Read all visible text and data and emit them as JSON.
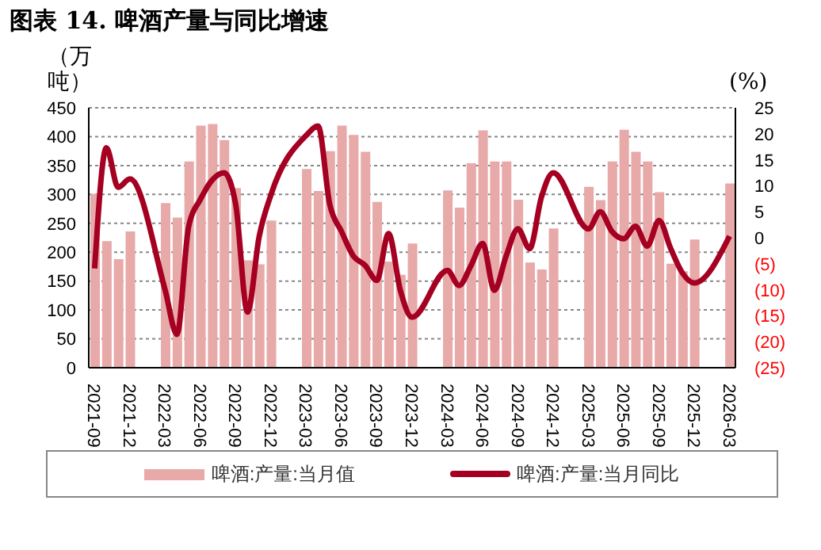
{
  "chart_data": {
    "type": "bar",
    "title": "图表 14. 啤酒产量与同比增速",
    "ylabel": "（万吨）",
    "y2label": "(%)",
    "categories": [
      "2021-09",
      null,
      null,
      "2021-12",
      null,
      null,
      "2022-03",
      null,
      null,
      "2022-06",
      null,
      null,
      "2022-09",
      null,
      null,
      "2022-12",
      null,
      null,
      "2023-03",
      null,
      null,
      "2023-06",
      null,
      null,
      "2023-09",
      null,
      null,
      "2023-12",
      null,
      null,
      "2024-03",
      null,
      null,
      "2024-06",
      null,
      null,
      "2024-09",
      null,
      null,
      "2024-12",
      null,
      null,
      "2025-03",
      null,
      null,
      "2025-06",
      null,
      null,
      "2025-09",
      null,
      null,
      "2025-12",
      null,
      null,
      "2026-03"
    ],
    "series": [
      {
        "name": "啤酒:产量:当月值",
        "axis": "y",
        "color": "#e8a9a9",
        "values": [
          301,
          219,
          188,
          236,
          null,
          null,
          285,
          260,
          357,
          419,
          422,
          394,
          311,
          186,
          179,
          255,
          null,
          null,
          344,
          306,
          375,
          419,
          403,
          374,
          287,
          184,
          161,
          215,
          null,
          null,
          307,
          277,
          354,
          411,
          357,
          357,
          291,
          182,
          170,
          241,
          null,
          null,
          313,
          290,
          357,
          412,
          374,
          357,
          304,
          180,
          167,
          222,
          null,
          null,
          319
        ]
      },
      {
        "name": "啤酒:产量:当月同比",
        "type": "line",
        "axis": "y2",
        "color": "#a50021",
        "values": [
          -5.9,
          17.3,
          9.7,
          11.3,
          null,
          null,
          -10.1,
          -18.6,
          2.2,
          7.4,
          11.1,
          12.5,
          6.4,
          -14.3,
          0.3,
          8.3,
          null,
          null,
          19.7,
          21.5,
          6.4,
          1.2,
          -3.5,
          -5.3,
          -8.2,
          0.8,
          -10.1,
          -15.3,
          null,
          null,
          -6.3,
          -9.2,
          -5.4,
          -1.1,
          -10.1,
          -3.5,
          1.7,
          -2.1,
          7.8,
          12.5,
          null,
          null,
          1.7,
          5.0,
          1.2,
          -0.2,
          2.2,
          -1.6,
          3.3,
          -2.1,
          -6.8,
          -8.7,
          null,
          null,
          0.3
        ]
      }
    ],
    "ylim": [
      0,
      450
    ],
    "yticks": [
      0,
      50,
      100,
      150,
      200,
      250,
      300,
      350,
      400,
      450
    ],
    "y2lim": [
      -25,
      25
    ],
    "y2ticks": [
      {
        "value": -25,
        "label": "(25)"
      },
      {
        "value": -20,
        "label": "(20)"
      },
      {
        "value": -15,
        "label": "(15)"
      },
      {
        "value": -10,
        "label": "(10)"
      },
      {
        "value": -5,
        "label": "(5)"
      },
      0,
      5,
      10,
      15,
      20,
      25
    ],
    "grid": "y",
    "legend": "bottom"
  }
}
